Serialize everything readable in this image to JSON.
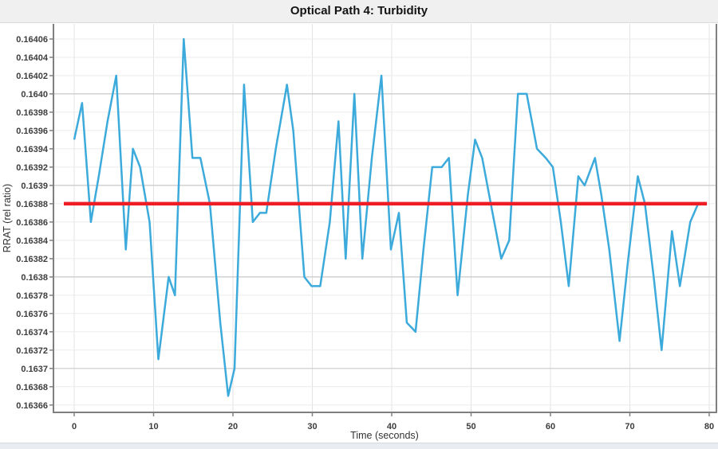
{
  "header": {
    "title": "Optical Path 4: Turbidity"
  },
  "colors": {
    "series_blue": "#3caadb",
    "mean_red": "#ee1c24",
    "grid_minor": "#ebebeb",
    "grid_major": "#c9c9c9",
    "grid_vertical": "#e3e3e3",
    "axis_border": "#7f7f7f",
    "tick_mark": "#808080",
    "tick_label": "#3d3d3d",
    "title_bg": "#f0f0f0",
    "footer_band": "#e9ecf1"
  },
  "chart_data": {
    "type": "line",
    "title": "Optical Path 4: Turbidity",
    "xlabel": "Time (seconds)",
    "ylabel": "RRAT (rel ratio)",
    "xlim": [
      -2.61,
      80.9
    ],
    "ylim": [
      0.163652,
      0.1640765
    ],
    "grid": true,
    "legend": "none",
    "x_ticks": [
      0,
      10,
      20,
      30,
      40,
      50,
      60,
      70,
      80
    ],
    "y_ticks": [
      {
        "value": 0.16406,
        "label": "0.16406",
        "major": false
      },
      {
        "value": 0.16404,
        "label": "0.16404",
        "major": false
      },
      {
        "value": 0.16402,
        "label": "0.16402",
        "major": false
      },
      {
        "value": 0.164,
        "label": "0.1640",
        "major": true
      },
      {
        "value": 0.16398,
        "label": "0.16398",
        "major": false
      },
      {
        "value": 0.16396,
        "label": "0.16396",
        "major": false
      },
      {
        "value": 0.16394,
        "label": "0.16394",
        "major": false
      },
      {
        "value": 0.16392,
        "label": "0.16392",
        "major": false
      },
      {
        "value": 0.1639,
        "label": "0.1639",
        "major": true
      },
      {
        "value": 0.16388,
        "label": "0.16388",
        "major": false
      },
      {
        "value": 0.16386,
        "label": "0.16386",
        "major": false
      },
      {
        "value": 0.16384,
        "label": "0.16384",
        "major": false
      },
      {
        "value": 0.16382,
        "label": "0.16382",
        "major": false
      },
      {
        "value": 0.1638,
        "label": "0.1638",
        "major": true
      },
      {
        "value": 0.16378,
        "label": "0.16378",
        "major": false
      },
      {
        "value": 0.16376,
        "label": "0.16376",
        "major": false
      },
      {
        "value": 0.16374,
        "label": "0.16374",
        "major": false
      },
      {
        "value": 0.16372,
        "label": "0.16372",
        "major": false
      },
      {
        "value": 0.1637,
        "label": "0.1637",
        "major": true
      },
      {
        "value": 0.16368,
        "label": "0.16368",
        "major": false
      },
      {
        "value": 0.16366,
        "label": "0.16366",
        "major": false
      }
    ],
    "series": [
      {
        "name": "turbidity-rrat",
        "color_key": "series_blue",
        "width": 2.5,
        "points": [
          [
            0,
            0.16395
          ],
          [
            1,
            0.16399
          ],
          [
            2.1,
            0.16386
          ],
          [
            3.1,
            0.16391
          ],
          [
            4.2,
            0.16397
          ],
          [
            5.3,
            0.16402
          ],
          [
            6.5,
            0.16383
          ],
          [
            7.4,
            0.16394
          ],
          [
            8.3,
            0.16392
          ],
          [
            9.5,
            0.16386
          ],
          [
            10.6,
            0.16371
          ],
          [
            11.9,
            0.1638
          ],
          [
            12.7,
            0.16378
          ],
          [
            13.8,
            0.16406
          ],
          [
            14.9,
            0.16393
          ],
          [
            15.9,
            0.16393
          ],
          [
            17.1,
            0.16388
          ],
          [
            18.4,
            0.16375
          ],
          [
            19.4,
            0.16367
          ],
          [
            20.2,
            0.1637
          ],
          [
            21.4,
            0.16401
          ],
          [
            22.5,
            0.16386
          ],
          [
            23.4,
            0.16387
          ],
          [
            24.2,
            0.16387
          ],
          [
            25.4,
            0.16394
          ],
          [
            26.8,
            0.16401
          ],
          [
            27.6,
            0.16396
          ],
          [
            29,
            0.1638
          ],
          [
            29.9,
            0.16379
          ],
          [
            31,
            0.16379
          ],
          [
            32.2,
            0.16386
          ],
          [
            33.3,
            0.16397
          ],
          [
            34.2,
            0.16382
          ],
          [
            35.3,
            0.164
          ],
          [
            36.3,
            0.16382
          ],
          [
            37.5,
            0.16393
          ],
          [
            38.7,
            0.16402
          ],
          [
            39.9,
            0.16383
          ],
          [
            40.9,
            0.16387
          ],
          [
            41.9,
            0.16375
          ],
          [
            43,
            0.16374
          ],
          [
            44,
            0.16383
          ],
          [
            45.1,
            0.16392
          ],
          [
            46.3,
            0.16392
          ],
          [
            47.2,
            0.16393
          ],
          [
            48.3,
            0.16378
          ],
          [
            49.6,
            0.16389
          ],
          [
            50.5,
            0.16395
          ],
          [
            51.4,
            0.16393
          ],
          [
            52.7,
            0.16387
          ],
          [
            53.8,
            0.16382
          ],
          [
            54.8,
            0.16384
          ],
          [
            55.9,
            0.164
          ],
          [
            57,
            0.164
          ],
          [
            58.3,
            0.16394
          ],
          [
            59.4,
            0.16393
          ],
          [
            60.3,
            0.16392
          ],
          [
            61.3,
            0.16386
          ],
          [
            62.3,
            0.16379
          ],
          [
            63.5,
            0.16391
          ],
          [
            64.3,
            0.1639
          ],
          [
            65.6,
            0.16393
          ],
          [
            66.4,
            0.16389
          ],
          [
            67.4,
            0.16383
          ],
          [
            68.7,
            0.16373
          ],
          [
            69.8,
            0.16382
          ],
          [
            71,
            0.16391
          ],
          [
            71.9,
            0.16388
          ],
          [
            73,
            0.1638
          ],
          [
            74,
            0.16372
          ],
          [
            75.3,
            0.16385
          ],
          [
            76.3,
            0.16379
          ],
          [
            77.6,
            0.16386
          ],
          [
            78.6,
            0.16388
          ]
        ]
      },
      {
        "name": "mean-line",
        "color_key": "mean_red",
        "width": 4.5,
        "points": [
          [
            -1.3,
            0.16388
          ],
          [
            79.7,
            0.16388
          ]
        ]
      }
    ],
    "mean_value": 0.16388
  }
}
